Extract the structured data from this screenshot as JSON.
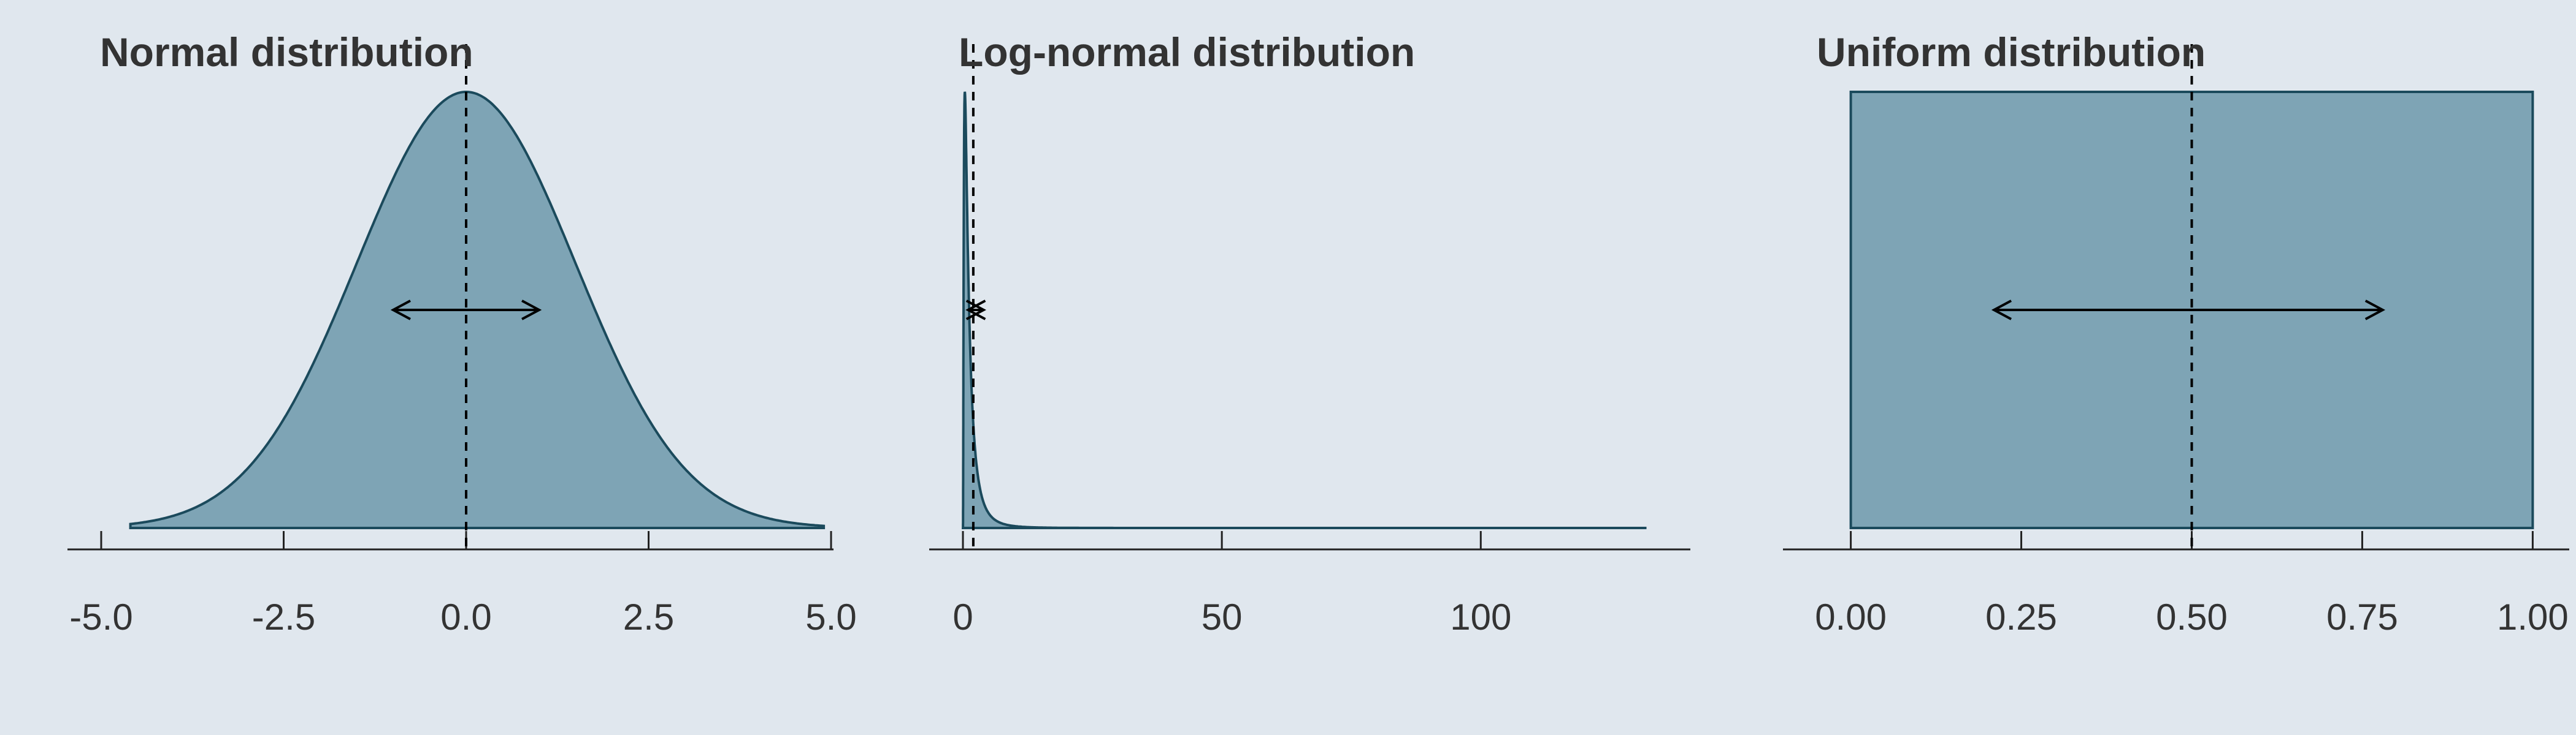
{
  "colors": {
    "background": "#e0e7ee",
    "fill": "#7ea4b5",
    "stroke": "#1b4a5c",
    "text": "#333333"
  },
  "chart_data": [
    {
      "type": "area",
      "title": "Normal distribution",
      "distribution": "normal",
      "params": {
        "mean": 0,
        "sd": 1.5
      },
      "x_range": [
        -4.6,
        4.9
      ],
      "xlim": [
        -5.0,
        5.0
      ],
      "ticks": [
        -5.0,
        -2.5,
        0.0,
        2.5,
        5.0
      ],
      "tick_labels": [
        "-5.0",
        "-2.5",
        "0.0",
        "2.5",
        "5.0"
      ],
      "center_line_x": 0.0,
      "arrow_from": -1.0,
      "arrow_to": 1.0,
      "arrow_level": 0.5,
      "xlabel": "",
      "ylabel": "",
      "grid": false,
      "legend": "none"
    },
    {
      "type": "area",
      "title": "Log-normal distribution",
      "distribution": "lognormal",
      "params": {
        "meanlog": 0,
        "sdlog": 1
      },
      "x_range": [
        0.0,
        132
      ],
      "xlim": [
        0,
        140
      ],
      "ticks": [
        0,
        50,
        100
      ],
      "tick_labels": [
        "0",
        "50",
        "100"
      ],
      "center_line_x": 2.0,
      "arrow_from": 1.0,
      "arrow_to": 4.0,
      "arrow_level": 0.5,
      "xlabel": "",
      "ylabel": "",
      "grid": false,
      "legend": "none"
    },
    {
      "type": "area",
      "title": "Uniform distribution",
      "distribution": "uniform",
      "params": {
        "min": 0,
        "max": 1
      },
      "x_range": [
        0.0,
        1.0
      ],
      "xlim": [
        -0.05,
        1.05
      ],
      "ticks": [
        0.0,
        0.25,
        0.5,
        0.75,
        1.0
      ],
      "tick_labels": [
        "0.00",
        "0.25",
        "0.50",
        "0.75",
        "1.00"
      ],
      "center_line_x": 0.5,
      "arrow_from": 0.21,
      "arrow_to": 0.78,
      "arrow_level": 0.5,
      "xlabel": "",
      "ylabel": "",
      "grid": false,
      "legend": "none"
    }
  ]
}
